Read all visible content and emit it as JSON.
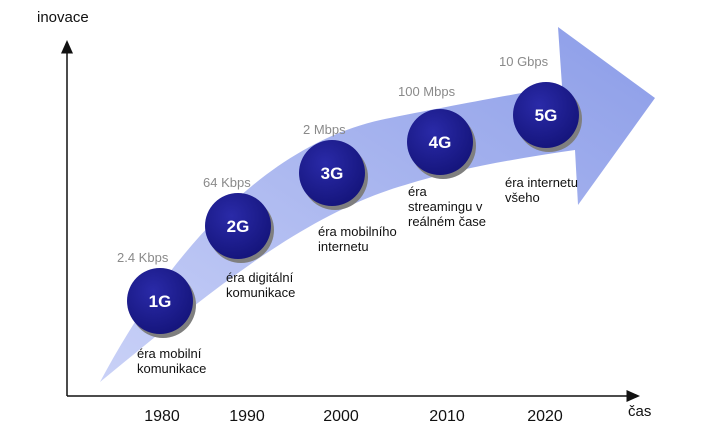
{
  "axes": {
    "y_label": "inovace",
    "x_label": "čas"
  },
  "generations": [
    {
      "name": "1G",
      "speed": "2.4 Kbps",
      "year": "1980",
      "era": [
        "éra mobilní",
        "komunikace"
      ]
    },
    {
      "name": "2G",
      "speed": "64 Kbps",
      "year": "1990",
      "era": [
        "éra digitální",
        "komunikace"
      ]
    },
    {
      "name": "3G",
      "speed": "2 Mbps",
      "year": "2000",
      "era": [
        "éra mobilního",
        "internetu"
      ]
    },
    {
      "name": "4G",
      "speed": "100 Mbps",
      "year": "2010",
      "era": [
        "éra",
        "streamingu v",
        "reálném čase"
      ]
    },
    {
      "name": "5G",
      "speed": "10 Gbps",
      "year": "2020",
      "era": [
        "éra internetu",
        "všeho"
      ]
    }
  ],
  "colors": {
    "arrow_light": "#c9d1f7",
    "arrow_dark": "#8c9de8",
    "node_fill": "#1a1a8c",
    "node_shadow": "#7f7f7f",
    "axis": "#111111"
  }
}
